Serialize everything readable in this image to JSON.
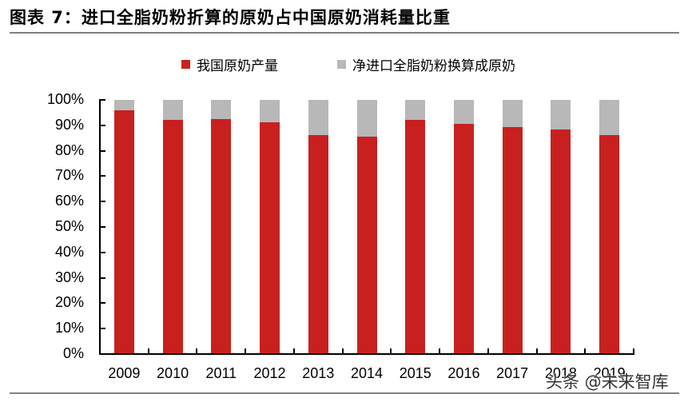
{
  "header": {
    "title": "图表 7：进口全脂奶粉折算的原奶占中国原奶消耗量比重"
  },
  "colors": {
    "domestic": "#c8201f",
    "imported": "#b8b8b8",
    "rule": "#808080"
  },
  "watermark": "头条 @未来智库",
  "chart_data": {
    "type": "bar",
    "stacked": true,
    "percent_stacked": true,
    "title": "图表 7：进口全脂奶粉折算的原奶占中国原奶消耗量比重",
    "xlabel": "",
    "ylabel": "",
    "ylim": [
      0,
      100
    ],
    "yticks": [
      "0%",
      "10%",
      "20%",
      "30%",
      "40%",
      "50%",
      "60%",
      "70%",
      "80%",
      "90%",
      "100%"
    ],
    "grid": false,
    "legend_position": "top",
    "categories": [
      "2009",
      "2010",
      "2011",
      "2012",
      "2013",
      "2014",
      "2015",
      "2016",
      "2017",
      "2018",
      "2019"
    ],
    "series": [
      {
        "name": "我国原奶产量",
        "color": "#c8201f",
        "values": [
          95.9,
          92.1,
          92.5,
          91.1,
          86.2,
          85.5,
          92.1,
          90.6,
          89.3,
          88.4,
          86.2
        ]
      },
      {
        "name": "净进口全脂奶粉换算成原奶",
        "color": "#b8b8b8",
        "values": [
          4.1,
          7.9,
          7.5,
          8.9,
          13.8,
          14.5,
          7.9,
          9.4,
          10.7,
          11.6,
          13.8
        ]
      }
    ]
  }
}
